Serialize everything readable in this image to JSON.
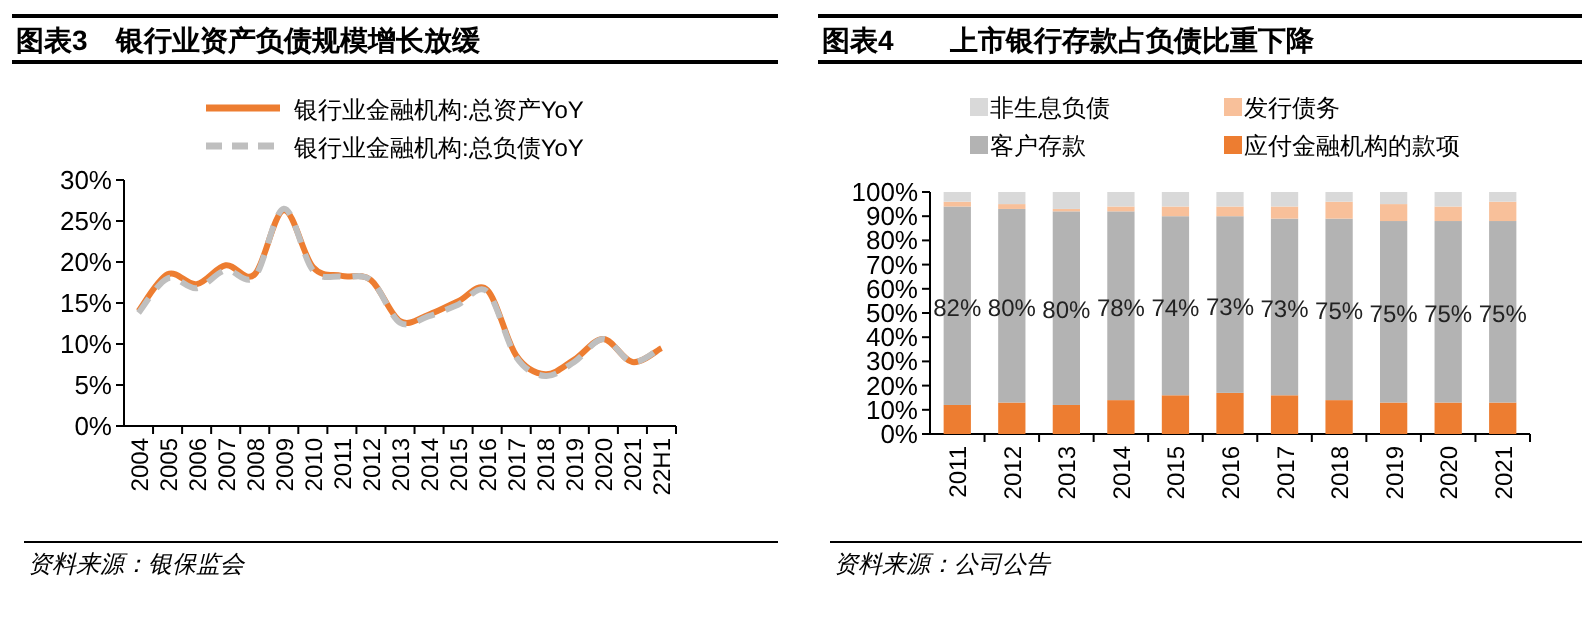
{
  "chart_data": [
    {
      "type": "line",
      "title": "图表3　银行业资产负债规模增长放缓",
      "categories": [
        "2004",
        "2005",
        "2006",
        "2007",
        "2008",
        "2009",
        "2010",
        "2011",
        "2012",
        "2013",
        "2014",
        "2015",
        "2016",
        "2017",
        "2018",
        "2019",
        "2020",
        "2021",
        "22H1"
      ],
      "series": [
        {
          "name": "银行业金融机构:总资产YoY",
          "color": "#ed7d31",
          "line_style": "solid",
          "values": [
            14,
            18.5,
            17.3,
            19.6,
            18.5,
            26.3,
            19.4,
            18.3,
            17.8,
            12.8,
            13.6,
            15.2,
            16.6,
            8.6,
            6.3,
            8.1,
            10.6,
            7.8,
            9.5
          ]
        },
        {
          "name": "银行业金融机构:总负债YoY",
          "color": "#bfbfbf",
          "line_style": "dashed",
          "values": [
            13.8,
            18,
            16.8,
            19,
            18.2,
            26.5,
            19,
            18.2,
            17.8,
            12.6,
            13.4,
            14.8,
            16.4,
            8.4,
            6.1,
            7.8,
            10.6,
            7.8,
            9.6
          ]
        }
      ],
      "ylim": [
        0,
        30
      ],
      "yticks": [
        {
          "value": 0,
          "label": "0%"
        },
        {
          "value": 5,
          "label": "5%"
        },
        {
          "value": 10,
          "label": "10%"
        },
        {
          "value": 15,
          "label": "15%"
        },
        {
          "value": 20,
          "label": "20%"
        },
        {
          "value": 25,
          "label": "25%"
        },
        {
          "value": 30,
          "label": "30%"
        }
      ],
      "grid": false,
      "legend": "top",
      "marker": "none",
      "annotations": [
        "资料来源：银保监会"
      ]
    },
    {
      "type": "bar",
      "title": "图表4　　上市银行存款占负债比重下降",
      "stacked": true,
      "categories": [
        "2011",
        "2012",
        "2013",
        "2014",
        "2015",
        "2016",
        "2017",
        "2018",
        "2019",
        "2020",
        "2021"
      ],
      "series": [
        {
          "name": "应付金融机构的款项",
          "color": "#ed7d31",
          "values": [
            12,
            13,
            12,
            14,
            16,
            17,
            16,
            14,
            13,
            13,
            13
          ]
        },
        {
          "name": "客户存款",
          "color": "#b3b3b3",
          "values": [
            82,
            80,
            80,
            78,
            74,
            73,
            73,
            75,
            75,
            75,
            75
          ],
          "value_labels": [
            "82%",
            "80%",
            "80%",
            "78%",
            "74%",
            "73%",
            "73%",
            "75%",
            "75%",
            "75%",
            "75%"
          ]
        },
        {
          "name": "发行债务",
          "color": "#f8c09a",
          "values": [
            2,
            2,
            1,
            2,
            4,
            4,
            5,
            7,
            7,
            6,
            8
          ]
        },
        {
          "name": "非生息负债",
          "color": "#d9d9d9",
          "values": [
            4,
            5,
            7,
            6,
            6,
            6,
            6,
            4,
            5,
            6,
            4
          ]
        }
      ],
      "ylim": [
        0,
        100
      ],
      "yticks": [
        {
          "value": 0,
          "label": "0%"
        },
        {
          "value": 10,
          "label": "10%"
        },
        {
          "value": 20,
          "label": "20%"
        },
        {
          "value": 30,
          "label": "30%"
        },
        {
          "value": 40,
          "label": "40%"
        },
        {
          "value": 50,
          "label": "50%"
        },
        {
          "value": 60,
          "label": "60%"
        },
        {
          "value": 70,
          "label": "70%"
        },
        {
          "value": 80,
          "label": "80%"
        },
        {
          "value": 90,
          "label": "90%"
        },
        {
          "value": 100,
          "label": "100%"
        }
      ],
      "grid": false,
      "legend": "top",
      "annotations": [
        "资料来源：公司公告"
      ]
    }
  ]
}
